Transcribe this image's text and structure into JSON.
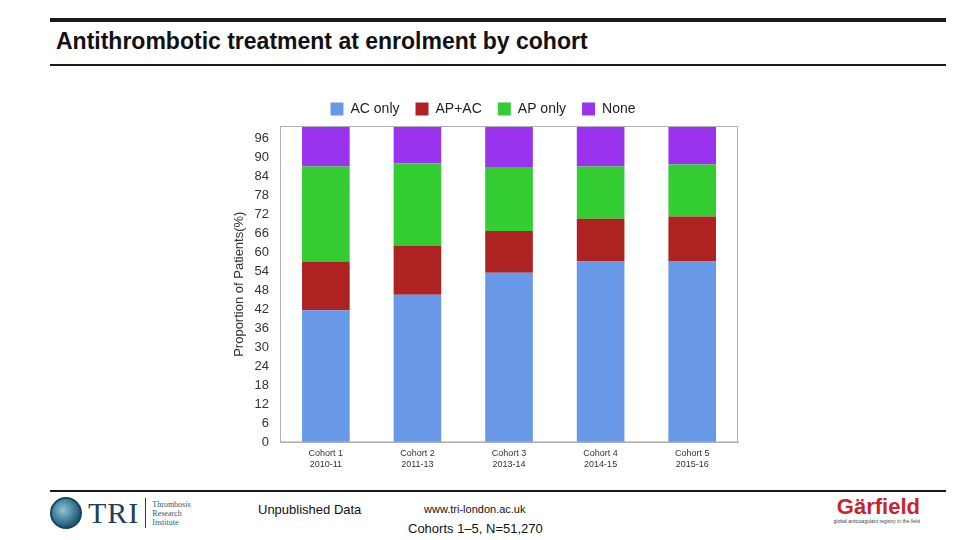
{
  "chart_data": {
    "type": "bar",
    "title": "Antithrombotic treatment at enrolment by cohort",
    "y_label": "Proportion of Patients(%)",
    "categories": [
      [
        "Cohort 1",
        "2010-11"
      ],
      [
        "Cohort 2",
        "2011-13"
      ],
      [
        "Cohort 3",
        "2013-14"
      ],
      [
        "Cohort 4",
        "2014-15"
      ],
      [
        "Cohort 5",
        "2015-16"
      ]
    ],
    "series": [
      {
        "name": "AC only",
        "color": "#6a98e8",
        "values": [
          41.8,
          46.7,
          53.6,
          57.2,
          57.2
        ]
      },
      {
        "name": "AP+AC",
        "color": "#ad2322",
        "values": [
          15.4,
          15.5,
          13.2,
          13.5,
          14.2
        ]
      },
      {
        "name": "AP only",
        "color": "#33cc33",
        "values": [
          30.0,
          26.0,
          20.0,
          16.5,
          16.4
        ]
      },
      {
        "name": "None",
        "color": "#9933ee",
        "values": [
          12.8,
          11.8,
          13.2,
          12.8,
          12.2
        ]
      }
    ],
    "stacked": true,
    "ylim": [
      0,
      100
    ],
    "yticks": [
      0,
      6,
      12,
      18,
      24,
      30,
      36,
      42,
      48,
      54,
      60,
      66,
      72,
      78,
      84,
      90,
      96
    ],
    "grid": false,
    "legend": "top"
  },
  "footer": {
    "note": "Unpublished Data",
    "url": "www.tri-london.ac.uk",
    "cohorts": "Cohorts 1–5, N=51,270",
    "logo_left": {
      "name": "TRI",
      "lines": [
        "Thrombosis",
        "Research",
        "Institute"
      ]
    },
    "logo_right": {
      "name": "Gärfield",
      "tagline": "global anticoagulant registry in the field"
    }
  }
}
